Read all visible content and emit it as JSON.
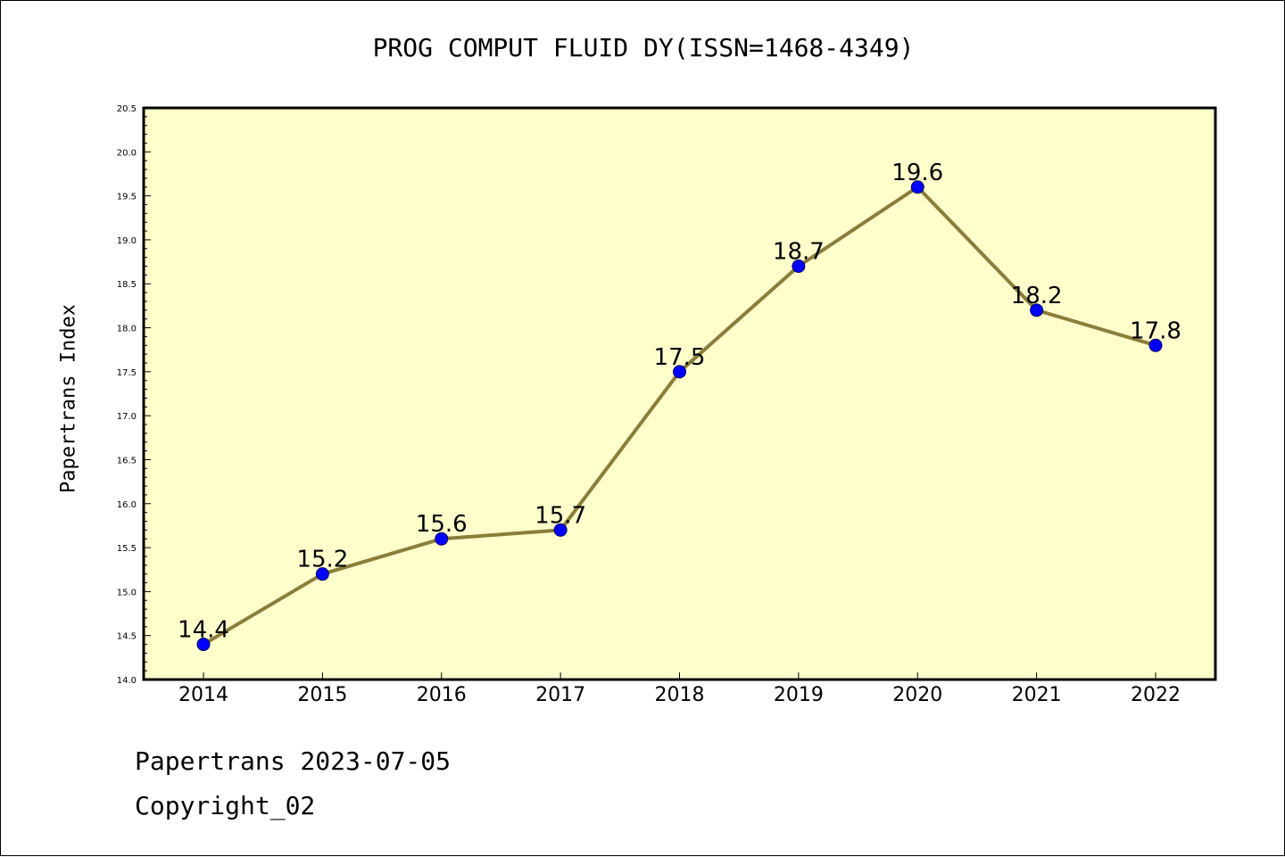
{
  "chart_data": {
    "type": "line",
    "title": "PROG COMPUT FLUID DY(ISSN=1468-4349)",
    "xlabel": "",
    "ylabel": "Papertrans Index",
    "categories": [
      "2014",
      "2015",
      "2016",
      "2017",
      "2018",
      "2019",
      "2020",
      "2021",
      "2022"
    ],
    "series": [
      {
        "values": [
          14.4,
          15.2,
          15.6,
          15.7,
          17.5,
          18.7,
          19.6,
          18.2,
          17.8
        ]
      }
    ],
    "data_labels": [
      "14.4",
      "15.2",
      "15.6",
      "15.7",
      "17.5",
      "18.7",
      "19.6",
      "18.2",
      "17.8"
    ],
    "y_ticks": [
      "14.0",
      "14.5",
      "15.0",
      "15.5",
      "16.0",
      "16.5",
      "17.0",
      "17.5",
      "18.0",
      "18.5",
      "19.0",
      "19.5",
      "20.0",
      "20.5"
    ],
    "ylim": [
      14.0,
      20.5
    ],
    "grid": false,
    "colors": {
      "plot_background": "#ffffcc",
      "line": "#8b7d3a",
      "marker": "#0000ff"
    }
  },
  "footer": {
    "date_line": "Papertrans 2023-07-05",
    "copyright": "Copyright_02"
  }
}
